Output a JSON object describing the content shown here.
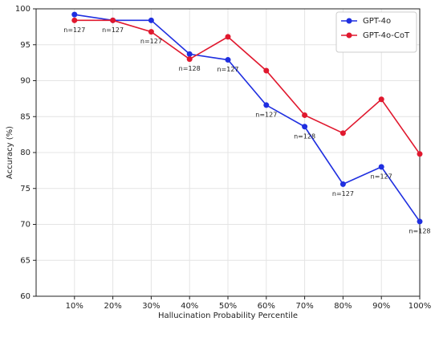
{
  "chart_data": {
    "type": "line",
    "x": [
      10,
      20,
      30,
      40,
      50,
      60,
      70,
      80,
      90,
      100
    ],
    "xlim": [
      0,
      100
    ],
    "xticks": [
      {
        "value": 10,
        "label": "10%"
      },
      {
        "value": 20,
        "label": "20%"
      },
      {
        "value": 30,
        "label": "30%"
      },
      {
        "value": 40,
        "label": "40%"
      },
      {
        "value": 50,
        "label": "50%"
      },
      {
        "value": 60,
        "label": "60%"
      },
      {
        "value": 70,
        "label": "70%"
      },
      {
        "value": 80,
        "label": "80%"
      },
      {
        "value": 90,
        "label": "90%"
      },
      {
        "value": 100,
        "label": "100%"
      }
    ],
    "ylim": [
      60,
      100
    ],
    "yticks": [
      60,
      65,
      70,
      75,
      80,
      85,
      90,
      95,
      100
    ],
    "xlabel": "Hallucination Probability Percentile",
    "ylabel": "Accuracy (%)",
    "grid": true,
    "legend": "upper right",
    "series": [
      {
        "name": "GPT-4o",
        "color": "#1f2fe0",
        "values": [
          99.2,
          98.4,
          98.4,
          93.7,
          92.9,
          86.6,
          83.6,
          75.6,
          78.0,
          70.4
        ]
      },
      {
        "name": "GPT-4o-CoT",
        "color": "#e0182e",
        "values": [
          98.4,
          98.4,
          96.8,
          93.0,
          96.1,
          91.4,
          85.2,
          82.7,
          87.4,
          79.8
        ]
      }
    ],
    "annotations": [
      "n=127",
      "n=127",
      "n=127",
      "n=128",
      "n=127",
      "n=127",
      "n=128",
      "n=127",
      "n=127",
      "n=128"
    ]
  }
}
